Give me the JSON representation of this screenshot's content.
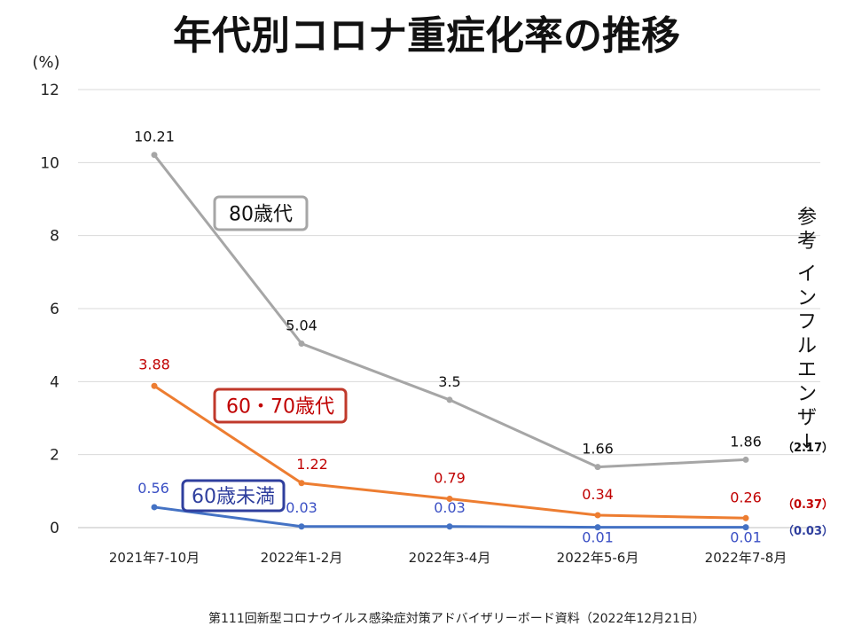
{
  "chart_data": {
    "type": "line",
    "title": "年代別コロナ重症化率の推移",
    "ylabel": "(%)",
    "ylim": [
      0,
      12
    ],
    "yticks": [
      "0",
      "2",
      "4",
      "6",
      "8",
      "10",
      "12"
    ],
    "grid": true,
    "categories": [
      "2021年7-10月",
      "2022年1-2月",
      "2022年3-4月",
      "2022年5-6月",
      "2022年7-8月"
    ],
    "series": [
      {
        "name": "80歳代",
        "color": "#a6a6a6",
        "label_color": "#111111",
        "box_color": "#a6a6a6",
        "values": [
          10.21,
          5.04,
          3.5,
          1.66,
          1.86
        ],
        "labels": [
          "10.21",
          "5.04",
          "3.5",
          "1.66",
          "1.86"
        ]
      },
      {
        "name": "60・70歳代",
        "color": "#ed7d31",
        "label_color": "#c00000",
        "box_color": "#c0392b",
        "values": [
          3.88,
          1.22,
          0.79,
          0.34,
          0.26
        ],
        "labels": [
          "3.88",
          "1.22",
          "0.79",
          "0.34",
          "0.26"
        ]
      },
      {
        "name": "60歳未満",
        "color": "#4472c4",
        "label_color": "#3a4fc4",
        "box_color": "#2f3f9e",
        "values": [
          0.56,
          0.03,
          0.03,
          0.01,
          0.01
        ],
        "labels": [
          "0.56",
          "0.03",
          "0.03",
          "0.01",
          "0.01"
        ]
      }
    ],
    "reference": {
      "label": "参考 インフルエンザ↓",
      "values": [
        {
          "text": "2.17",
          "value": 2.17,
          "color": "#111111"
        },
        {
          "text": "0.37",
          "value": 0.37,
          "color": "#c00000"
        },
        {
          "text": "0.03",
          "value": 0.03,
          "color": "#2f3f9e"
        }
      ]
    }
  },
  "source": "第111回新型コロナウイルス感染症対策アドバイザリーボード資料（2022年12月21日）"
}
